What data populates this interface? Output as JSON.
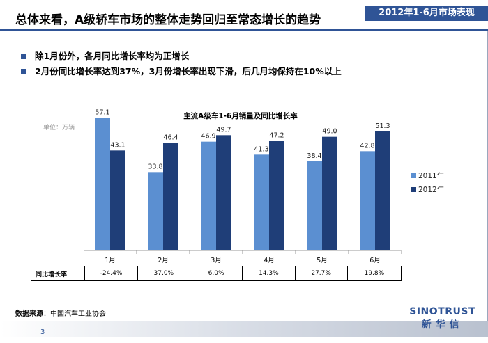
{
  "header": {
    "title": "总体来看，A级轿车市场的整体走势回归至常态增长的趋势",
    "period_badge": "2012年1-6月市场表现"
  },
  "bullets": [
    "除1月份外，各月同比增长率均为正增长",
    "2月份同比增长率达到37%，3月份增长率出现下滑，后几月均保持在10%以上"
  ],
  "colors": {
    "series_2011": "#5b8fd1",
    "series_2012": "#1f3e78",
    "accent": "#2f5496"
  },
  "chart_data": {
    "type": "bar",
    "title": "主流A级车1-6月销量及同比增长率",
    "unit_label": "单位：万辆",
    "categories": [
      "1月",
      "2月",
      "3月",
      "4月",
      "5月",
      "6月"
    ],
    "series": [
      {
        "name": "2011年",
        "values": [
          57.1,
          33.8,
          46.9,
          41.3,
          38.4,
          42.8
        ],
        "labels": [
          "57.1",
          "33.8",
          "46.9",
          "41.3",
          "38.4",
          "42.8"
        ]
      },
      {
        "name": "2012年",
        "values": [
          43.1,
          46.4,
          49.7,
          47.2,
          49.0,
          51.3
        ],
        "labels": [
          "43.1",
          "46.4",
          "49.7",
          "47.2",
          "49.0",
          "51.3"
        ]
      }
    ],
    "ylim": [
      0,
      60
    ],
    "legend_position": "right",
    "growth_row": {
      "label": "同比增长率",
      "values": [
        "-24.4%",
        "37.0%",
        "6.0%",
        "14.3%",
        "27.7%",
        "19.8%"
      ]
    }
  },
  "footer": {
    "source_label": "数据来源",
    "source_text": "：中国汽车工业协会",
    "page_number": "3",
    "logo_en": "SINOTRUST",
    "logo_cn": "新华信"
  }
}
